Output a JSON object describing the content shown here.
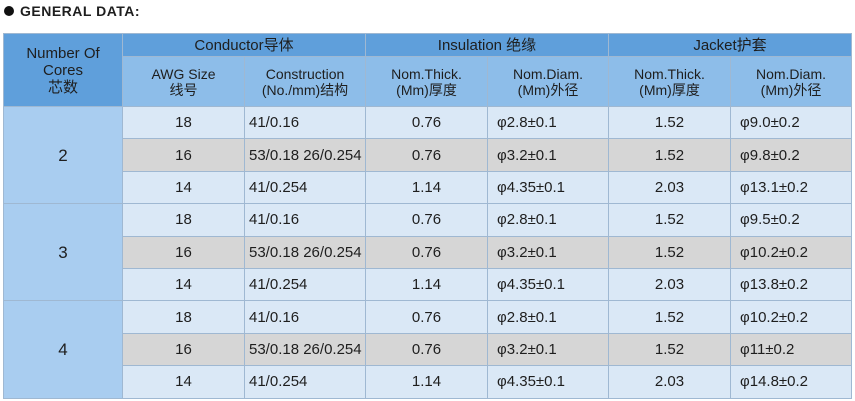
{
  "title": "GENERAL DATA:",
  "table": {
    "header": {
      "cores": [
        "Number Of",
        "Cores",
        "芯数"
      ],
      "groups": [
        "Conductor导体",
        "Insulation 绝缘",
        "Jacket护套"
      ],
      "columns": [
        [
          "AWG Size",
          "线号"
        ],
        [
          "Construction",
          "(No./mm)结构"
        ],
        [
          "Nom.Thick.",
          "(Mm)厚度"
        ],
        [
          "Nom.Diam.",
          "(Mm)外径"
        ],
        [
          "Nom.Thick.",
          "(Mm)厚度"
        ],
        [
          "Nom.Diam.",
          "(Mm)外径"
        ]
      ]
    },
    "groups": [
      {
        "cores": "2",
        "rows": [
          [
            "18",
            "41/0.16",
            "0.76",
            "φ2.8±0.1",
            "1.52",
            "φ9.0±0.2"
          ],
          [
            "16",
            "53/0.18 26/0.254",
            "0.76",
            "φ3.2±0.1",
            "1.52",
            "φ9.8±0.2"
          ],
          [
            "14",
            "41/0.254",
            "1.14",
            "φ4.35±0.1",
            "2.03",
            "φ13.1±0.2"
          ]
        ]
      },
      {
        "cores": "3",
        "rows": [
          [
            "18",
            "41/0.16",
            "0.76",
            "φ2.8±0.1",
            "1.52",
            "φ9.5±0.2"
          ],
          [
            "16",
            "53/0.18 26/0.254",
            "0.76",
            "φ3.2±0.1",
            "1.52",
            "φ10.2±0.2"
          ],
          [
            "14",
            "41/0.254",
            "1.14",
            "φ4.35±0.1",
            "2.03",
            "φ13.8±0.2"
          ]
        ]
      },
      {
        "cores": "4",
        "rows": [
          [
            "18",
            "41/0.16",
            "0.76",
            "φ2.8±0.1",
            "1.52",
            "φ10.2±0.2"
          ],
          [
            "16",
            "53/0.18 26/0.254",
            "0.76",
            "φ3.2±0.1",
            "1.52",
            "φ11±0.2"
          ],
          [
            "14",
            "41/0.254",
            "1.14",
            "φ4.35±0.1",
            "2.03",
            "φ14.8±0.2"
          ]
        ]
      }
    ]
  }
}
